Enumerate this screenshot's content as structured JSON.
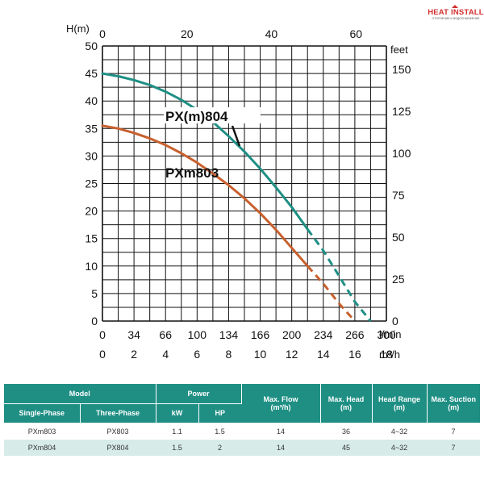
{
  "brand": {
    "name": "HEAT INSTALL",
    "tagline": "ОТОПЛЕНИЕ И ВОДОСНАБЖЕНИЕ"
  },
  "chart_data": {
    "type": "line",
    "ylabel": "H(m)",
    "ylabel_right": "feet",
    "xlabel_lpm": "l/min",
    "xlabel_m3h": "m³/h",
    "xlim_m3h": [
      0,
      18
    ],
    "ylim_m": [
      0,
      50
    ],
    "grid": true,
    "left_ticks": [
      "0",
      "5",
      "10",
      "15",
      "20",
      "25",
      "30",
      "35",
      "40",
      "45",
      "50"
    ],
    "right_ticks": [
      "0",
      "25",
      "50",
      "75",
      "100",
      "125",
      "150"
    ],
    "right_tick_values_m": [
      0,
      7.62,
      15.24,
      22.86,
      30.48,
      38.1,
      45.72
    ],
    "top_ticks": [
      "0",
      "20",
      "40",
      "60"
    ],
    "top_tick_values_m3h": [
      0,
      5.36,
      10.71,
      16.07
    ],
    "lpm_ticks": [
      "0",
      "34",
      "66",
      "100",
      "134",
      "166",
      "200",
      "234",
      "266",
      "300"
    ],
    "m3h_ticks": [
      "0",
      "2",
      "4",
      "6",
      "8",
      "10",
      "12",
      "14",
      "16",
      "18"
    ],
    "series": [
      {
        "name": "PX(m)804",
        "color": "#1f8f84",
        "solid": [
          [
            0,
            45
          ],
          [
            1,
            44.5
          ],
          [
            2,
            43.8
          ],
          [
            3,
            42.9
          ],
          [
            4,
            41.7
          ],
          [
            5,
            40.2
          ],
          [
            6,
            38.4
          ],
          [
            7,
            36.2
          ],
          [
            8,
            33.6
          ],
          [
            9,
            30.8
          ],
          [
            10,
            27.7
          ],
          [
            11,
            24.3
          ],
          [
            12,
            20.7
          ],
          [
            13,
            16.7
          ]
        ],
        "dashed": [
          [
            13,
            16.7
          ],
          [
            14,
            12.8
          ],
          [
            15,
            8.2
          ],
          [
            16,
            3.5
          ],
          [
            17,
            0
          ]
        ]
      },
      {
        "name": "PXm803",
        "color": "#c8602e",
        "solid": [
          [
            0,
            35.5
          ],
          [
            1,
            35
          ],
          [
            2,
            34.2
          ],
          [
            3,
            33.2
          ],
          [
            4,
            32
          ],
          [
            5,
            30.5
          ],
          [
            6,
            28.8
          ],
          [
            7,
            26.8
          ],
          [
            8,
            24.7
          ],
          [
            9,
            22.3
          ],
          [
            10,
            19.6
          ],
          [
            11,
            16.6
          ],
          [
            12,
            13.3
          ],
          [
            13,
            10
          ]
        ],
        "dashed": [
          [
            13,
            10
          ],
          [
            14,
            6.8
          ],
          [
            15,
            3.2
          ],
          [
            16,
            0
          ]
        ]
      }
    ]
  },
  "table": {
    "group_headers": {
      "model": "Model",
      "power": "Power",
      "max_flow": "Max. Flow",
      "max_head": "Max. Head",
      "head_range": "Head Range",
      "max_suction": "Max. Suction"
    },
    "sub_headers": {
      "single_phase": "Single-Phase",
      "three_phase": "Three-Phase",
      "kw": "kW",
      "hp": "HP",
      "max_flow_unit": "(m³/h)",
      "max_head_unit": "(m)",
      "head_range_unit": "(m)",
      "max_suction_unit": "(m)"
    },
    "rows": [
      {
        "single": "PXm803",
        "three": "PX803",
        "kw": "1.1",
        "hp": "1.5",
        "flow": "14",
        "head": "36",
        "range": "4~32",
        "suction": "7"
      },
      {
        "single": "PXm804",
        "three": "PX804",
        "kw": "1.5",
        "hp": "2",
        "flow": "14",
        "head": "45",
        "range": "4~32",
        "suction": "7"
      }
    ]
  }
}
